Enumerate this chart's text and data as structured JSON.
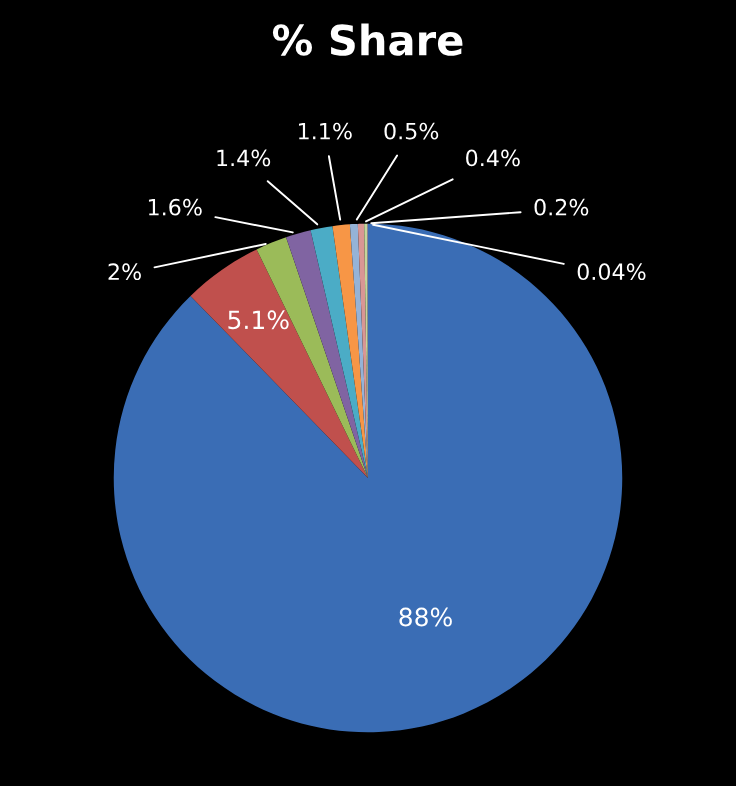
{
  "chart_data": {
    "type": "pie",
    "title": "% Share",
    "categories": [
      null,
      null,
      null,
      null,
      null,
      null,
      null,
      null,
      null,
      null
    ],
    "values": [
      88,
      5.1,
      2,
      1.6,
      1.4,
      1.1,
      0.5,
      0.4,
      0.2,
      0.04
    ],
    "value_labels": [
      "88%",
      "5.1%",
      "2%",
      "1.6%",
      "1.4%",
      "1.1%",
      "0.5%",
      "0.4%",
      "0.2%",
      "0.04%"
    ],
    "colors": [
      "#3a6db5",
      "#c0504d",
      "#9bbb59",
      "#8064a2",
      "#4bacc6",
      "#f79646",
      "#95b3d7",
      "#d99694",
      "#c3d69b",
      "#b3a2c7"
    ],
    "legend": false
  }
}
